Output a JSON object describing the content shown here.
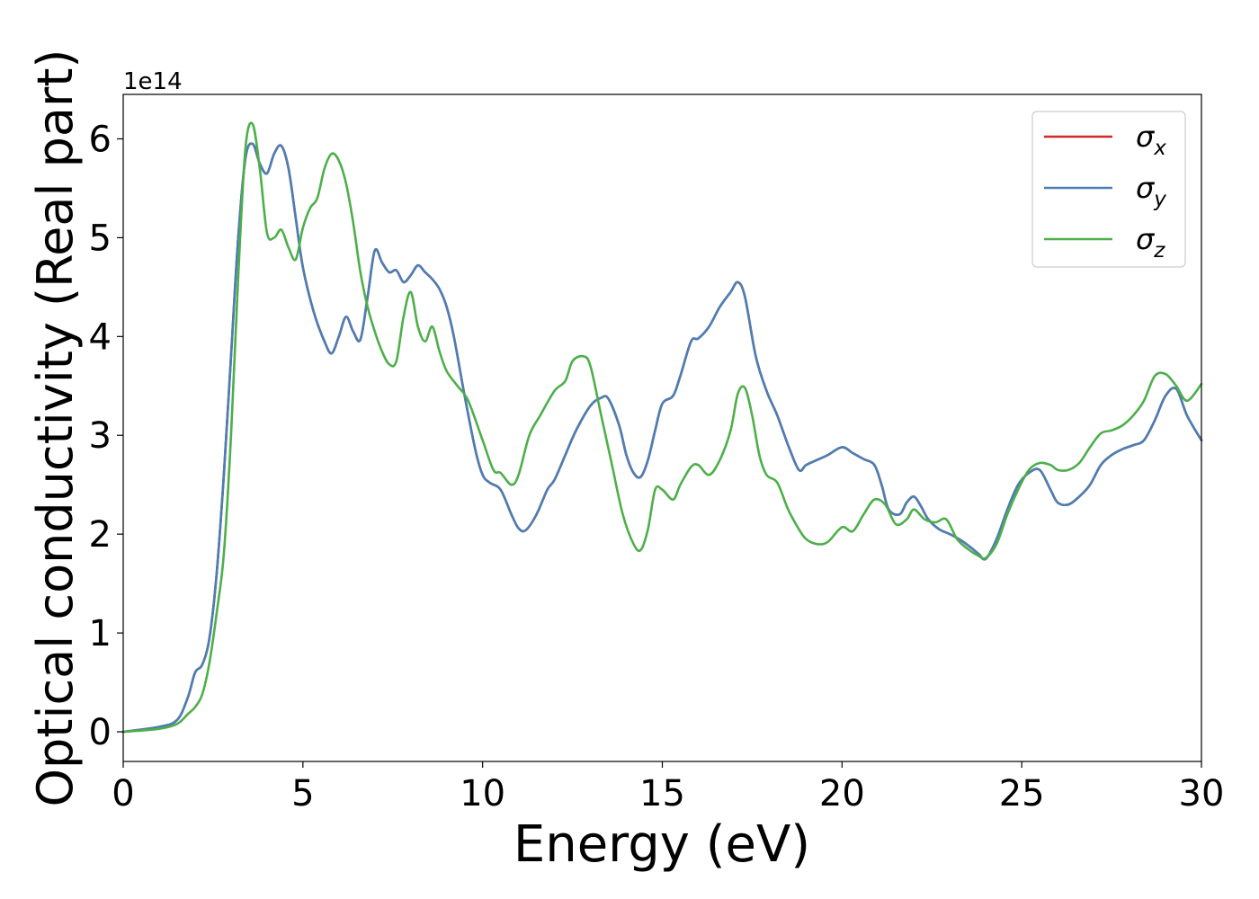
{
  "chart_data": {
    "type": "line",
    "xlabel": "Energy (eV)",
    "ylabel": "Optical conductivity (Real part)",
    "y_offset_label": "1e14",
    "xlim": [
      0,
      30
    ],
    "ylim": [
      -0.3,
      6.45
    ],
    "x_ticks": [
      0,
      5,
      10,
      15,
      20,
      25,
      30
    ],
    "x_tick_labels": [
      "0",
      "5",
      "10",
      "15",
      "20",
      "25",
      "30"
    ],
    "y_ticks": [
      0,
      1,
      2,
      3,
      4,
      5,
      6
    ],
    "y_tick_labels": [
      "0",
      "1",
      "2",
      "3",
      "4",
      "5",
      "6"
    ],
    "grid": false,
    "legend_position": "top-right",
    "series": [
      {
        "name": "σx",
        "legend_main": "σ",
        "legend_sub": "x",
        "color": "#d62728",
        "x": [
          0,
          1.0,
          1.5,
          1.8,
          2.0,
          2.2,
          2.4,
          2.6,
          2.8,
          3.0,
          3.2,
          3.4,
          3.6,
          3.8,
          4.0,
          4.2,
          4.4,
          4.6,
          4.8,
          5.0,
          5.3,
          5.6,
          5.8,
          6.0,
          6.2,
          6.4,
          6.6,
          6.8,
          7.0,
          7.2,
          7.4,
          7.6,
          7.8,
          8.0,
          8.2,
          8.4,
          8.6,
          8.8,
          9.0,
          9.2,
          9.5,
          9.8,
          10.0,
          10.2,
          10.5,
          10.8,
          11.0,
          11.2,
          11.5,
          11.8,
          12.0,
          12.3,
          12.6,
          13.0,
          13.3,
          13.5,
          13.8,
          14.0,
          14.2,
          14.4,
          14.6,
          14.8,
          15.0,
          15.3,
          15.5,
          15.8,
          16.0,
          16.3,
          16.6,
          16.9,
          17.1,
          17.3,
          17.6,
          17.9,
          18.2,
          18.5,
          18.8,
          19.0,
          19.3,
          19.6,
          20.0,
          20.3,
          20.6,
          20.9,
          21.1,
          21.3,
          21.6,
          21.8,
          22.0,
          22.2,
          22.4,
          22.7,
          23.0,
          23.3,
          23.6,
          23.8,
          24.0,
          24.3,
          24.6,
          24.9,
          25.2,
          25.5,
          25.8,
          26.0,
          26.3,
          26.6,
          26.9,
          27.2,
          27.5,
          27.8,
          28.1,
          28.4,
          28.7,
          29.0,
          29.3,
          29.6,
          30.0
        ],
        "y": [
          0,
          0.05,
          0.12,
          0.35,
          0.6,
          0.68,
          0.95,
          1.6,
          2.6,
          3.8,
          5.0,
          5.8,
          5.95,
          5.75,
          5.65,
          5.85,
          5.93,
          5.7,
          5.2,
          4.7,
          4.25,
          3.95,
          3.83,
          4.0,
          4.2,
          4.05,
          3.97,
          4.4,
          4.87,
          4.75,
          4.65,
          4.67,
          4.55,
          4.62,
          4.72,
          4.65,
          4.58,
          4.48,
          4.3,
          4.0,
          3.4,
          2.85,
          2.6,
          2.52,
          2.45,
          2.2,
          2.06,
          2.04,
          2.2,
          2.45,
          2.55,
          2.8,
          3.05,
          3.3,
          3.38,
          3.37,
          3.1,
          2.8,
          2.62,
          2.58,
          2.75,
          3.05,
          3.32,
          3.4,
          3.6,
          3.95,
          3.98,
          4.1,
          4.3,
          4.45,
          4.55,
          4.4,
          3.8,
          3.45,
          3.2,
          2.9,
          2.65,
          2.7,
          2.75,
          2.8,
          2.88,
          2.82,
          2.76,
          2.7,
          2.5,
          2.25,
          2.2,
          2.32,
          2.38,
          2.28,
          2.15,
          2.05,
          2.0,
          1.94,
          1.86,
          1.8,
          1.75,
          1.95,
          2.25,
          2.5,
          2.62,
          2.65,
          2.45,
          2.32,
          2.3,
          2.38,
          2.5,
          2.7,
          2.8,
          2.86,
          2.9,
          2.95,
          3.15,
          3.4,
          3.47,
          3.2,
          2.95
        ]
      },
      {
        "name": "σy",
        "legend_main": "σ",
        "legend_sub": "y",
        "color": "#4a7fb5",
        "x": [
          0,
          1.0,
          1.5,
          1.8,
          2.0,
          2.2,
          2.4,
          2.6,
          2.8,
          3.0,
          3.2,
          3.4,
          3.6,
          3.8,
          4.0,
          4.2,
          4.4,
          4.6,
          4.8,
          5.0,
          5.3,
          5.6,
          5.8,
          6.0,
          6.2,
          6.4,
          6.6,
          6.8,
          7.0,
          7.2,
          7.4,
          7.6,
          7.8,
          8.0,
          8.2,
          8.4,
          8.6,
          8.8,
          9.0,
          9.2,
          9.5,
          9.8,
          10.0,
          10.2,
          10.5,
          10.8,
          11.0,
          11.2,
          11.5,
          11.8,
          12.0,
          12.3,
          12.6,
          13.0,
          13.3,
          13.5,
          13.8,
          14.0,
          14.2,
          14.4,
          14.6,
          14.8,
          15.0,
          15.3,
          15.5,
          15.8,
          16.0,
          16.3,
          16.6,
          16.9,
          17.1,
          17.3,
          17.6,
          17.9,
          18.2,
          18.5,
          18.8,
          19.0,
          19.3,
          19.6,
          20.0,
          20.3,
          20.6,
          20.9,
          21.1,
          21.3,
          21.6,
          21.8,
          22.0,
          22.2,
          22.4,
          22.7,
          23.0,
          23.3,
          23.6,
          23.8,
          24.0,
          24.3,
          24.6,
          24.9,
          25.2,
          25.5,
          25.8,
          26.0,
          26.3,
          26.6,
          26.9,
          27.2,
          27.5,
          27.8,
          28.1,
          28.4,
          28.7,
          29.0,
          29.3,
          29.6,
          30.0
        ],
        "y": [
          0,
          0.05,
          0.12,
          0.35,
          0.6,
          0.68,
          0.95,
          1.6,
          2.6,
          3.8,
          5.0,
          5.8,
          5.95,
          5.75,
          5.65,
          5.85,
          5.93,
          5.7,
          5.2,
          4.7,
          4.25,
          3.95,
          3.83,
          4.0,
          4.2,
          4.05,
          3.97,
          4.4,
          4.87,
          4.75,
          4.65,
          4.67,
          4.55,
          4.62,
          4.72,
          4.65,
          4.58,
          4.48,
          4.3,
          4.0,
          3.4,
          2.85,
          2.6,
          2.52,
          2.45,
          2.2,
          2.06,
          2.04,
          2.2,
          2.45,
          2.55,
          2.8,
          3.05,
          3.3,
          3.38,
          3.37,
          3.1,
          2.8,
          2.62,
          2.58,
          2.75,
          3.05,
          3.32,
          3.4,
          3.6,
          3.95,
          3.98,
          4.1,
          4.3,
          4.45,
          4.55,
          4.4,
          3.8,
          3.45,
          3.2,
          2.9,
          2.65,
          2.7,
          2.75,
          2.8,
          2.88,
          2.82,
          2.76,
          2.7,
          2.5,
          2.25,
          2.2,
          2.32,
          2.38,
          2.28,
          2.15,
          2.05,
          2.0,
          1.94,
          1.86,
          1.8,
          1.75,
          1.95,
          2.25,
          2.5,
          2.62,
          2.65,
          2.45,
          2.32,
          2.3,
          2.38,
          2.5,
          2.7,
          2.8,
          2.86,
          2.9,
          2.95,
          3.15,
          3.4,
          3.47,
          3.2,
          2.95
        ]
      },
      {
        "name": "σz",
        "legend_main": "σ",
        "legend_sub": "z",
        "color": "#4daf4a",
        "x": [
          0,
          1.0,
          1.5,
          1.8,
          2.0,
          2.2,
          2.4,
          2.6,
          2.8,
          3.0,
          3.2,
          3.4,
          3.6,
          3.8,
          4.0,
          4.2,
          4.4,
          4.6,
          4.8,
          5.0,
          5.2,
          5.4,
          5.6,
          5.8,
          6.0,
          6.2,
          6.4,
          6.6,
          6.8,
          7.0,
          7.2,
          7.4,
          7.6,
          7.8,
          8.0,
          8.2,
          8.4,
          8.6,
          8.8,
          9.0,
          9.3,
          9.6,
          10.0,
          10.3,
          10.5,
          10.8,
          11.0,
          11.3,
          11.6,
          12.0,
          12.3,
          12.5,
          12.8,
          13.0,
          13.3,
          13.6,
          13.9,
          14.2,
          14.4,
          14.6,
          14.8,
          15.0,
          15.3,
          15.5,
          15.8,
          16.0,
          16.3,
          16.6,
          16.9,
          17.1,
          17.3,
          17.5,
          17.7,
          17.9,
          18.2,
          18.5,
          18.8,
          19.0,
          19.3,
          19.6,
          20.0,
          20.3,
          20.6,
          20.9,
          21.2,
          21.5,
          21.8,
          22.0,
          22.3,
          22.6,
          22.9,
          23.2,
          23.5,
          23.8,
          24.0,
          24.3,
          24.6,
          24.9,
          25.2,
          25.5,
          25.8,
          26.0,
          26.3,
          26.6,
          26.9,
          27.2,
          27.5,
          27.8,
          28.1,
          28.4,
          28.7,
          29.0,
          29.3,
          29.6,
          30.0
        ],
        "y": [
          0,
          0.03,
          0.08,
          0.18,
          0.25,
          0.38,
          0.7,
          1.2,
          1.8,
          3.0,
          4.6,
          5.9,
          6.15,
          5.7,
          5.05,
          5.0,
          5.08,
          4.9,
          4.78,
          5.1,
          5.3,
          5.4,
          5.7,
          5.85,
          5.78,
          5.55,
          5.15,
          4.65,
          4.3,
          4.05,
          3.85,
          3.72,
          3.75,
          4.2,
          4.45,
          4.1,
          3.95,
          4.1,
          3.85,
          3.65,
          3.5,
          3.35,
          2.95,
          2.65,
          2.62,
          2.5,
          2.6,
          3.0,
          3.2,
          3.45,
          3.55,
          3.75,
          3.8,
          3.7,
          3.2,
          2.7,
          2.2,
          1.9,
          1.84,
          2.05,
          2.45,
          2.45,
          2.35,
          2.5,
          2.68,
          2.7,
          2.6,
          2.75,
          3.05,
          3.42,
          3.48,
          3.2,
          2.8,
          2.6,
          2.52,
          2.25,
          2.05,
          1.95,
          1.9,
          1.92,
          2.07,
          2.03,
          2.2,
          2.35,
          2.3,
          2.1,
          2.15,
          2.25,
          2.15,
          2.12,
          2.15,
          1.95,
          1.85,
          1.78,
          1.76,
          1.9,
          2.2,
          2.45,
          2.65,
          2.72,
          2.7,
          2.65,
          2.65,
          2.72,
          2.88,
          3.02,
          3.05,
          3.1,
          3.2,
          3.35,
          3.6,
          3.62,
          3.5,
          3.35,
          3.52
        ]
      }
    ]
  }
}
